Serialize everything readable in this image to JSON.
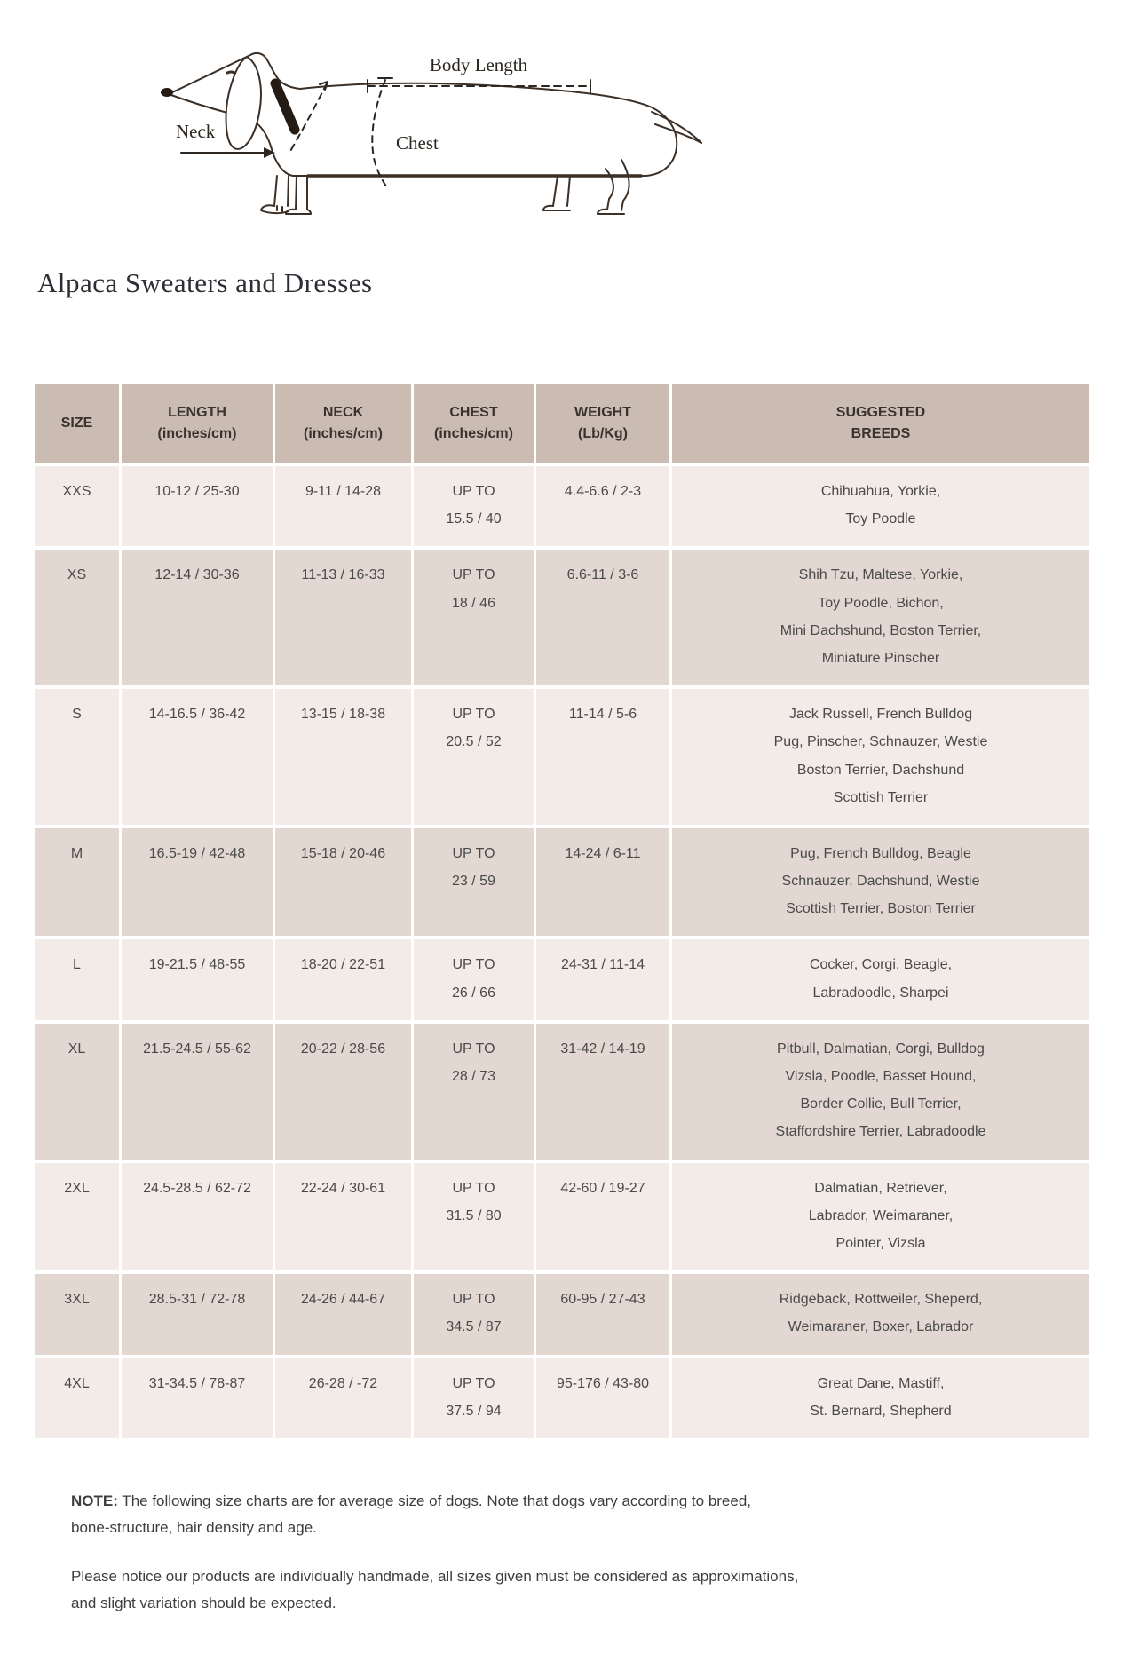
{
  "diagram": {
    "labels": {
      "body_length": "Body Length",
      "neck": "Neck",
      "chest": "Chest"
    }
  },
  "page_title": "Alpaca Sweaters and Dresses",
  "table": {
    "columns": [
      "SIZE",
      "LENGTH\n(inches/cm)",
      "NECK\n(inches/cm)",
      "CHEST\n(inches/cm)",
      "WEIGHT\n(Lb/Kg)",
      "SUGGESTED\nBREEDS"
    ],
    "rows": [
      {
        "size": "XXS",
        "length": "10-12 / 25-30",
        "neck": "9-11 / 14-28",
        "chest": "UP TO\n15.5 / 40",
        "weight": "4.4-6.6 / 2-3",
        "breeds": "Chihuahua, Yorkie,\nToy Poodle"
      },
      {
        "size": "XS",
        "length": "12-14 / 30-36",
        "neck": "11-13 / 16-33",
        "chest": "UP TO\n18 / 46",
        "weight": "6.6-11 / 3-6",
        "breeds": "Shih Tzu, Maltese, Yorkie,\nToy Poodle, Bichon,\nMini Dachshund, Boston Terrier,\nMiniature Pinscher"
      },
      {
        "size": "S",
        "length": "14-16.5 / 36-42",
        "neck": "13-15 / 18-38",
        "chest": "UP TO\n20.5 / 52",
        "weight": "11-14 / 5-6",
        "breeds": "Jack Russell, French Bulldog\nPug, Pinscher, Schnauzer, Westie\nBoston Terrier, Dachshund\nScottish Terrier"
      },
      {
        "size": "M",
        "length": "16.5-19 / 42-48",
        "neck": "15-18 / 20-46",
        "chest": "UP TO\n23 / 59",
        "weight": "14-24 / 6-11",
        "breeds": "Pug, French Bulldog, Beagle\nSchnauzer, Dachshund, Westie\nScottish Terrier, Boston Terrier"
      },
      {
        "size": "L",
        "length": "19-21.5 / 48-55",
        "neck": "18-20 / 22-51",
        "chest": "UP TO\n26 / 66",
        "weight": "24-31 / 11-14",
        "breeds": "Cocker, Corgi, Beagle,\nLabradoodle, Sharpei"
      },
      {
        "size": "XL",
        "length": "21.5-24.5 / 55-62",
        "neck": "20-22 / 28-56",
        "chest": "UP TO\n28 / 73",
        "weight": "31-42 / 14-19",
        "breeds": "Pitbull, Dalmatian, Corgi, Bulldog\nVizsla, Poodle, Basset Hound,\nBorder Collie, Bull Terrier,\nStaffordshire Terrier, Labradoodle"
      },
      {
        "size": "2XL",
        "length": "24.5-28.5 / 62-72",
        "neck": "22-24 / 30-61",
        "chest": "UP TO\n31.5 / 80",
        "weight": "42-60 / 19-27",
        "breeds": "Dalmatian, Retriever,\nLabrador, Weimaraner,\nPointer, Vizsla"
      },
      {
        "size": "3XL",
        "length": "28.5-31 / 72-78",
        "neck": "24-26 / 44-67",
        "chest": "UP TO\n34.5 / 87",
        "weight": "60-95 / 27-43",
        "breeds": "Ridgeback, Rottweiler, Sheperd,\nWeimaraner, Boxer, Labrador"
      },
      {
        "size": "4XL",
        "length": "31-34.5 / 78-87",
        "neck": "26-28 / -72",
        "chest": "UP TO\n37.5 / 94",
        "weight": "95-176 / 43-80",
        "breeds": "Great Dane, Mastiff,\nSt. Bernard, Shepherd"
      }
    ]
  },
  "notes": {
    "note_label": "NOTE:",
    "note_text": " The following size charts are for average size of dogs. Note that dogs vary according to breed,\nbone-structure, hair density and age.",
    "disclaimer": "Please notice our products are individually handmade, all sizes given must be considered as approximations,\nand slight variation should be expected."
  },
  "colors": {
    "header_bg": "#cbbcb3",
    "row_light": "#f2ebe8",
    "row_dark": "#e2d7d1",
    "cell_text": "#4a4a4a",
    "title_color": "#2d2d33",
    "line_color": "#3b2f26",
    "note_text": "#3d3d3d"
  }
}
